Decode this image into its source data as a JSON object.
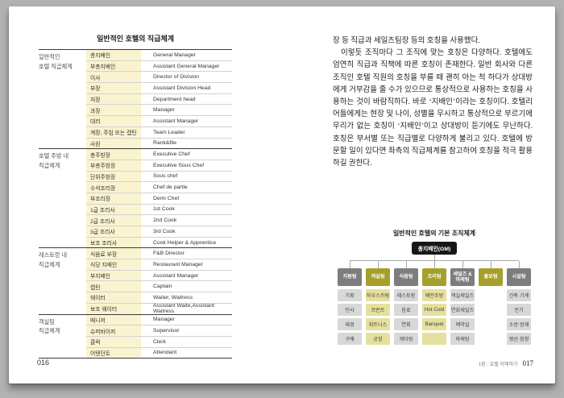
{
  "colors": {
    "accent_olive": "#a5a02c",
    "header_gray": "#7d7d7d",
    "chart_cell_yellow": "#e6e09e",
    "chart_cell_gray": "#d8d8d8",
    "table_yellow": "#faf3cf",
    "root_box_black": "#161616"
  },
  "left_page": {
    "table_title": "일반적인 호텔의 직급체계",
    "page_number": "016",
    "groups": [
      {
        "label_lines": [
          "일반적인",
          "호텔 직급체계"
        ],
        "rows": [
          [
            "총지배인",
            "General Manager"
          ],
          [
            "부총지배인",
            "Assistant General Manager"
          ],
          [
            "이사",
            "Director of Division"
          ],
          [
            "부장",
            "Assistant Division Head"
          ],
          [
            "처장",
            "Department head"
          ],
          [
            "과장",
            "Manager"
          ],
          [
            "대리",
            "Assistant Manager"
          ],
          [
            "계장, 주임 또는 캡틴",
            "Team Leader"
          ],
          [
            "사원",
            "Rank&file"
          ]
        ]
      },
      {
        "label_lines": [
          "호텔 주방 내",
          "직급체계"
        ],
        "rows": [
          [
            "총주방장",
            "Executive Chef"
          ],
          [
            "부총주방장",
            "Executive Sous Chef"
          ],
          [
            "단위주방장",
            "Sous chef"
          ],
          [
            "수석조리장",
            "Chef de partie"
          ],
          [
            "부조리장",
            "Demi Chef"
          ],
          [
            "1급 조리사",
            "1st Cook"
          ],
          [
            "2급 조리사",
            "2nd Cook"
          ],
          [
            "3급 조리사",
            "3rd Cook"
          ],
          [
            "보조 조리사",
            "Cook Helper & Apprentice"
          ]
        ]
      },
      {
        "label_lines": [
          "레스토랑 내",
          "직급체계"
        ],
        "rows": [
          [
            "식음료 부장",
            "F&B Director"
          ],
          [
            "식당 지배인",
            "Restaurant Manager"
          ],
          [
            "부지배인",
            "Assistant Manager"
          ],
          [
            "캡틴",
            "Captain"
          ],
          [
            "웨이터",
            "Waiter, Waitress"
          ],
          [
            "보조 웨이터",
            "Assistant Waite,Assistant Waitress"
          ]
        ]
      },
      {
        "label_lines": [
          "객실팀",
          "직급체계"
        ],
        "rows": [
          [
            "매니저",
            "Manager"
          ],
          [
            "슈퍼바이저",
            "Supervisor"
          ],
          [
            "클럭",
            "Clerk"
          ],
          [
            "어텐던트",
            "Attendant"
          ]
        ]
      }
    ]
  },
  "right_page": {
    "paragraphs": [
      "장 등 직급과 세일즈팀장 등의 호칭을 사용했다.",
      "이렇듯 조직마다 그 조직에 맞는 호칭은 다양하다. 호텔에도 엄연히 직급과 직책에 따른 호칭이 존재한다. 일반 회사와 다른 조직인 호텔 직원의 호칭을 부를 때 괜히 아는 척 하다가 상대방에게 거부감을 줄 수가 있으므로 통상적으로 사용하는 호칭을 사용하는 것이 바람직하다. 바로 ‘지배인’이라는 호칭이다. 호텔리어들에게는 현장 및 나이, 성별을 무시하고 통상적으로 부르기에 무리가 없는 호칭이 ‘지배인’이고 상대방이 듣기에도 무난하다. 호칭은 부서별 또는 직급별로 다양하게 불리고 있다. 호텔에 방문할 일이 있다면 좌측의 직급체계를 참고하여 호칭을 적극 활용하길 권한다."
    ],
    "org_chart": {
      "title": "일반적인 호텔의 기본 조직체계",
      "root": "총지배인(GM)",
      "columns": [
        {
          "name": "지원팀",
          "style": "gray",
          "children": [
            "기획",
            "인사",
            "재경",
            "구매"
          ]
        },
        {
          "name": "객실팀",
          "style": "olive",
          "children": [
            "하우스키핑",
            "프런트",
            "휘트니스",
            "공항"
          ]
        },
        {
          "name": "식음팀",
          "style": "gray",
          "children": [
            "레스토랑",
            "음료",
            "연회",
            "케더링"
          ]
        },
        {
          "name": "조리팀",
          "style": "olive",
          "children": [
            "메인주방",
            "Hot·Cold",
            "Banquet",
            ""
          ]
        },
        {
          "name": "세일즈 & 마케팅",
          "style": "gray",
          "children": [
            "객실세일즈",
            "연회세일즈",
            "예약실",
            "마케팅"
          ]
        },
        {
          "name": "홍보팀",
          "style": "olive",
          "children": []
        },
        {
          "name": "시설팀",
          "style": "gray",
          "children": [
            "건축·기계",
            "전기",
            "소방·방재",
            "영선·음향"
          ]
        }
      ]
    },
    "footer": {
      "chapter": "1장 : 호텔 이해하기",
      "page_number": "017"
    }
  }
}
